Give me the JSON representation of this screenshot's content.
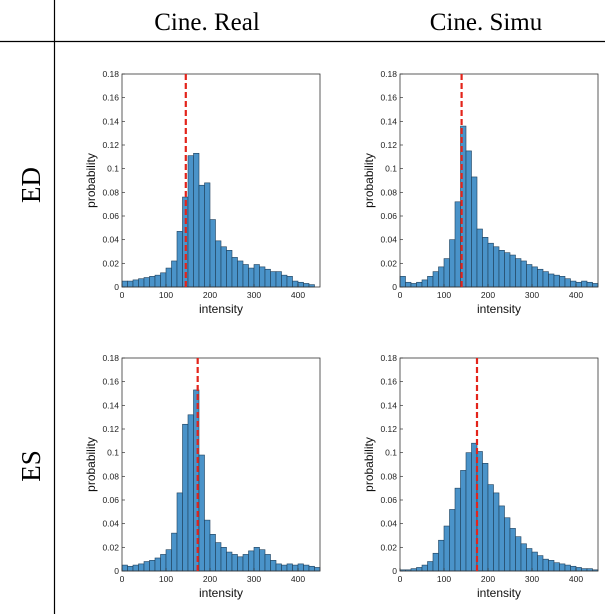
{
  "header": {
    "columns": [
      "Cine. Real",
      "Cine. Simu"
    ],
    "rows": [
      "ED",
      "ES"
    ]
  },
  "colors": {
    "bar_fill": "#4a93c9",
    "bar_edge": "#1f3f5a",
    "median_line": "#e3241b",
    "axis": "#333333"
  },
  "chart_data": [
    {
      "type": "bar",
      "panel": "ED / Cine. Real",
      "xlabel": "intensity",
      "ylabel": "probability",
      "xlim": [
        0,
        450
      ],
      "ylim": [
        0,
        0.18
      ],
      "xticks": [
        0,
        100,
        200,
        300,
        400
      ],
      "yticks": [
        0,
        0.02,
        0.04,
        0.06,
        0.08,
        0.1,
        0.12,
        0.14,
        0.16,
        0.18
      ],
      "bin_start": 0,
      "bin_width": 12.5,
      "values": [
        0.005,
        0.005,
        0.006,
        0.007,
        0.008,
        0.009,
        0.01,
        0.012,
        0.016,
        0.022,
        0.047,
        0.076,
        0.111,
        0.113,
        0.086,
        0.088,
        0.057,
        0.039,
        0.034,
        0.031,
        0.025,
        0.022,
        0.019,
        0.016,
        0.019,
        0.017,
        0.015,
        0.013,
        0.013,
        0.01,
        0.009,
        0.005,
        0.004,
        0.003,
        0.002
      ],
      "dashed_line_x": 145,
      "grid": false
    },
    {
      "type": "bar",
      "panel": "ED / Cine. Simu",
      "xlabel": "intensity",
      "ylabel": "probability",
      "xlim": [
        0,
        450
      ],
      "ylim": [
        0,
        0.18
      ],
      "xticks": [
        0,
        100,
        200,
        300,
        400
      ],
      "yticks": [
        0,
        0.02,
        0.04,
        0.06,
        0.08,
        0.1,
        0.12,
        0.14,
        0.16,
        0.18
      ],
      "bin_start": 0,
      "bin_width": 12.5,
      "values": [
        0.009,
        0.004,
        0.003,
        0.004,
        0.006,
        0.009,
        0.013,
        0.017,
        0.024,
        0.04,
        0.072,
        0.136,
        0.115,
        0.093,
        0.049,
        0.042,
        0.037,
        0.034,
        0.031,
        0.029,
        0.027,
        0.024,
        0.022,
        0.019,
        0.017,
        0.015,
        0.013,
        0.011,
        0.01,
        0.009,
        0.007,
        0.005,
        0.004,
        0.005,
        0.004,
        0.003
      ],
      "dashed_line_x": 140,
      "grid": false
    },
    {
      "type": "bar",
      "panel": "ES / Cine. Real",
      "xlabel": "intensity",
      "ylabel": "probability",
      "xlim": [
        0,
        450
      ],
      "ylim": [
        0,
        0.18
      ],
      "xticks": [
        0,
        100,
        200,
        300,
        400
      ],
      "yticks": [
        0,
        0.02,
        0.04,
        0.06,
        0.08,
        0.1,
        0.12,
        0.14,
        0.16,
        0.18
      ],
      "bin_start": 0,
      "bin_width": 12.5,
      "values": [
        0.005,
        0.004,
        0.005,
        0.006,
        0.008,
        0.009,
        0.011,
        0.014,
        0.018,
        0.032,
        0.066,
        0.124,
        0.132,
        0.153,
        0.098,
        0.043,
        0.031,
        0.024,
        0.02,
        0.016,
        0.014,
        0.012,
        0.014,
        0.017,
        0.02,
        0.018,
        0.014,
        0.009,
        0.006,
        0.005,
        0.006,
        0.005,
        0.006,
        0.005,
        0.004,
        0.003
      ],
      "dashed_line_x": 172,
      "grid": false
    },
    {
      "type": "bar",
      "panel": "ES / Cine. Simu",
      "xlabel": "intensity",
      "ylabel": "probability",
      "xlim": [
        0,
        450
      ],
      "ylim": [
        0,
        0.18
      ],
      "xticks": [
        0,
        100,
        200,
        300,
        400
      ],
      "yticks": [
        0,
        0.02,
        0.04,
        0.06,
        0.08,
        0.1,
        0.12,
        0.14,
        0.16,
        0.18
      ],
      "bin_start": 0,
      "bin_width": 12.5,
      "values": [
        0.001,
        0.001,
        0.002,
        0.003,
        0.005,
        0.008,
        0.015,
        0.026,
        0.038,
        0.052,
        0.07,
        0.085,
        0.1,
        0.108,
        0.101,
        0.091,
        0.073,
        0.066,
        0.055,
        0.045,
        0.036,
        0.029,
        0.023,
        0.019,
        0.016,
        0.013,
        0.01,
        0.009,
        0.007,
        0.006,
        0.005,
        0.004,
        0.003,
        0.002,
        0.002,
        0.001
      ],
      "dashed_line_x": 175,
      "grid": false
    }
  ]
}
